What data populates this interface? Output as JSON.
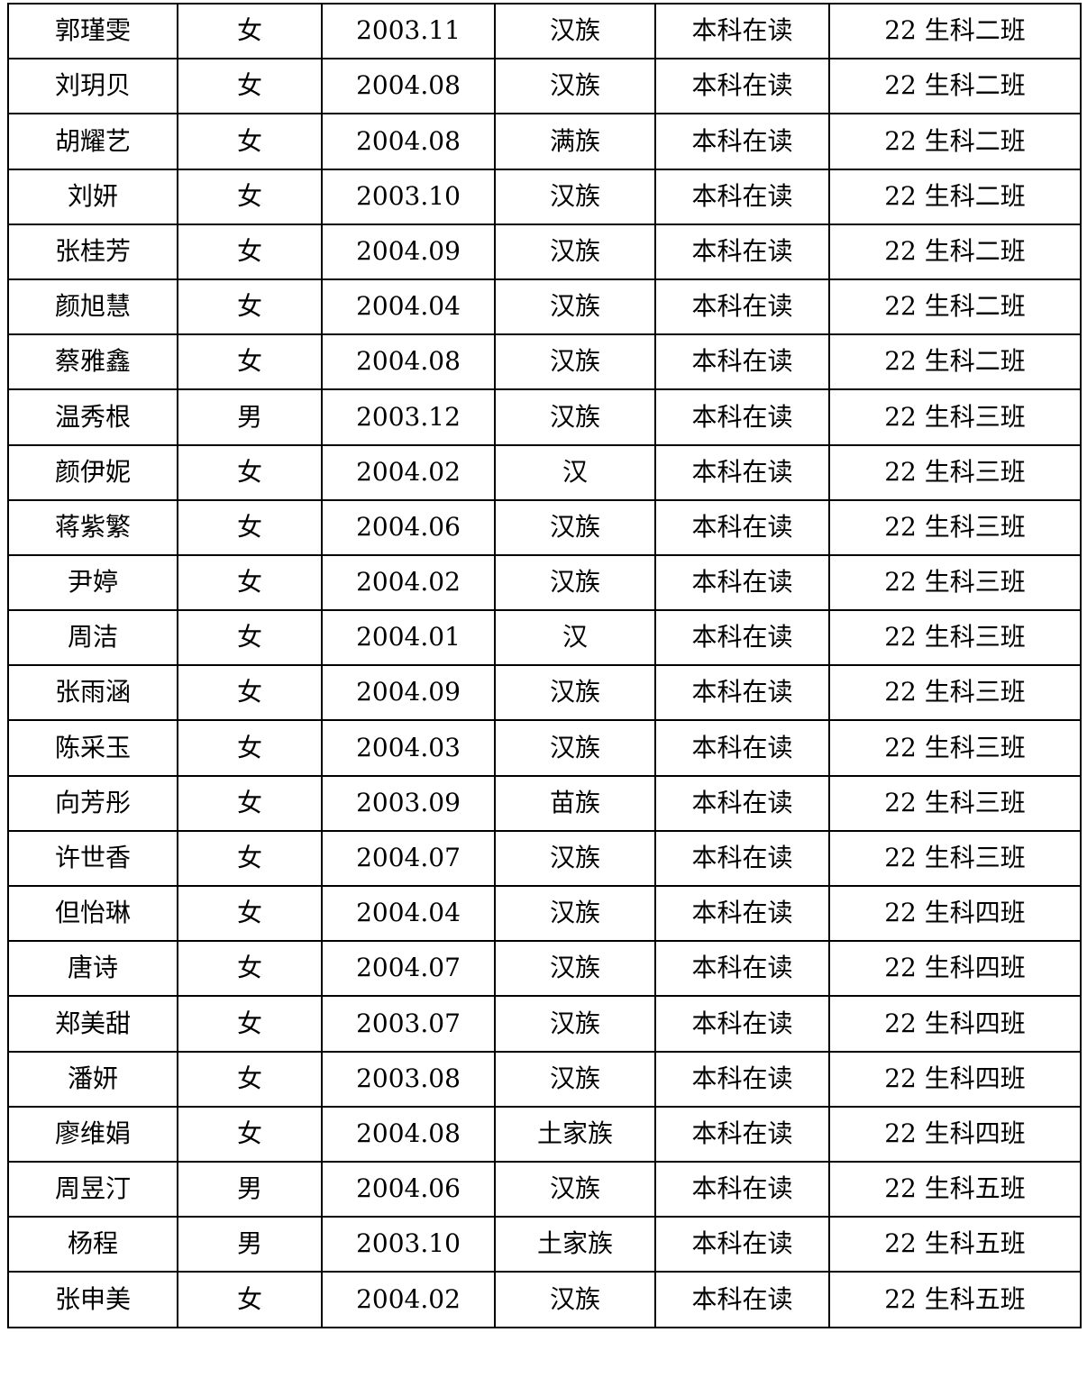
{
  "rows": [
    {
      "name": "郭瑾雯",
      "gender": "女",
      "birth": "2003.11",
      "ethnicity": "汉族",
      "status": "本科在读",
      "class_name": "22 生科二班"
    },
    {
      "name": "刘玥贝",
      "gender": "女",
      "birth": "2004.08",
      "ethnicity": "汉族",
      "status": "本科在读",
      "class_name": "22 生科二班"
    },
    {
      "name": "胡耀艺",
      "gender": "女",
      "birth": "2004.08",
      "ethnicity": "满族",
      "status": "本科在读",
      "class_name": "22 生科二班"
    },
    {
      "name": "刘妍",
      "gender": "女",
      "birth": "2003.10",
      "ethnicity": "汉族",
      "status": "本科在读",
      "class_name": "22 生科二班"
    },
    {
      "name": "张桂芳",
      "gender": "女",
      "birth": "2004.09",
      "ethnicity": "汉族",
      "status": "本科在读",
      "class_name": "22 生科二班"
    },
    {
      "name": "颜旭慧",
      "gender": "女",
      "birth": "2004.04",
      "ethnicity": "汉族",
      "status": "本科在读",
      "class_name": "22 生科二班"
    },
    {
      "name": "蔡雅鑫",
      "gender": "女",
      "birth": "2004.08",
      "ethnicity": "汉族",
      "status": "本科在读",
      "class_name": "22 生科二班"
    },
    {
      "name": "温秀根",
      "gender": "男",
      "birth": "2003.12",
      "ethnicity": "汉族",
      "status": "本科在读",
      "class_name": "22 生科三班"
    },
    {
      "name": "颜伊妮",
      "gender": "女",
      "birth": "2004.02",
      "ethnicity": "汉",
      "status": "本科在读",
      "class_name": "22 生科三班"
    },
    {
      "name": "蒋紫繁",
      "gender": "女",
      "birth": "2004.06",
      "ethnicity": "汉族",
      "status": "本科在读",
      "class_name": "22 生科三班"
    },
    {
      "name": "尹婷",
      "gender": "女",
      "birth": "2004.02",
      "ethnicity": "汉族",
      "status": "本科在读",
      "class_name": "22 生科三班"
    },
    {
      "name": "周洁",
      "gender": "女",
      "birth": "2004.01",
      "ethnicity": "汉",
      "status": "本科在读",
      "class_name": "22 生科三班"
    },
    {
      "name": "张雨涵",
      "gender": "女",
      "birth": "2004.09",
      "ethnicity": "汉族",
      "status": "本科在读",
      "class_name": "22 生科三班"
    },
    {
      "name": "陈采玉",
      "gender": "女",
      "birth": "2004.03",
      "ethnicity": "汉族",
      "status": "本科在读",
      "class_name": "22 生科三班"
    },
    {
      "name": "向芳彤",
      "gender": "女",
      "birth": "2003.09",
      "ethnicity": "苗族",
      "status": "本科在读",
      "class_name": "22 生科三班"
    },
    {
      "name": "许世香",
      "gender": "女",
      "birth": "2004.07",
      "ethnicity": "汉族",
      "status": "本科在读",
      "class_name": "22 生科三班"
    },
    {
      "name": "但怡琳",
      "gender": "女",
      "birth": "2004.04",
      "ethnicity": "汉族",
      "status": "本科在读",
      "class_name": "22 生科四班"
    },
    {
      "name": "唐诗",
      "gender": "女",
      "birth": "2004.07",
      "ethnicity": "汉族",
      "status": "本科在读",
      "class_name": "22 生科四班"
    },
    {
      "name": "郑美甜",
      "gender": "女",
      "birth": "2003.07",
      "ethnicity": "汉族",
      "status": "本科在读",
      "class_name": "22 生科四班"
    },
    {
      "name": "潘妍",
      "gender": "女",
      "birth": "2003.08",
      "ethnicity": "汉族",
      "status": "本科在读",
      "class_name": "22 生科四班"
    },
    {
      "name": "廖维娟",
      "gender": "女",
      "birth": "2004.08",
      "ethnicity": "土家族",
      "status": "本科在读",
      "class_name": "22 生科四班"
    },
    {
      "name": "周昱汀",
      "gender": "男",
      "birth": "2004.06",
      "ethnicity": "汉族",
      "status": "本科在读",
      "class_name": "22 生科五班"
    },
    {
      "name": "杨程",
      "gender": "男",
      "birth": "2003.10",
      "ethnicity": "土家族",
      "status": "本科在读",
      "class_name": "22 生科五班"
    },
    {
      "name": "张申美",
      "gender": "女",
      "birth": "2004.02",
      "ethnicity": "汉族",
      "status": "本科在读",
      "class_name": "22 生科五班"
    }
  ]
}
